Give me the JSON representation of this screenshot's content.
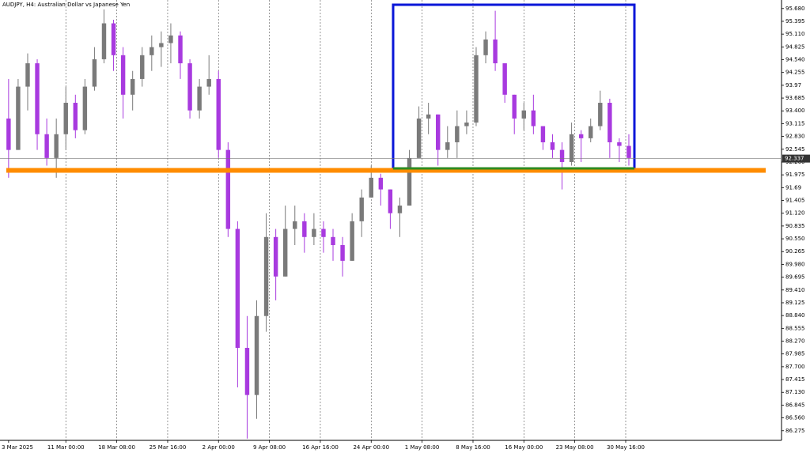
{
  "chart_data": {
    "type": "candlestick",
    "title": "AUDJPY, H4:  Australian Dollar vs Japanese Yen",
    "up_color": "#7a7a7a",
    "down_color": "#a83adf",
    "open": [
      93.23,
      92.53,
      93.94,
      94.46,
      92.88,
      92.35,
      92.88,
      93.58,
      92.97,
      93.94,
      94.55,
      95.35,
      94.64,
      93.76,
      94.11,
      94.64,
      94.82,
      94.91,
      95.08,
      94.46,
      93.41,
      93.94,
      94.11,
      92.53,
      90.77,
      88.12,
      87.07,
      88.83,
      90.59,
      89.71,
      90.77,
      90.94,
      90.59,
      90.77,
      90.59,
      90.41,
      90.06,
      90.94,
      91.47,
      91.91,
      91.65,
      91.12,
      91.29,
      92.35,
      93.23,
      93.32,
      92.53,
      92.7,
      93.06,
      93.14,
      94.64,
      94.99,
      94.46,
      93.76,
      93.23,
      93.41,
      93.06,
      92.7,
      92.53,
      92.26,
      92.88,
      92.79,
      93.06,
      93.58,
      92.7,
      92.62
    ],
    "high": [
      94.11,
      94.11,
      94.68,
      94.55,
      93.23,
      93.23,
      93.94,
      93.76,
      94.11,
      94.82,
      95.66,
      95.43,
      94.82,
      94.29,
      94.82,
      95.08,
      95.17,
      95.35,
      95.17,
      94.55,
      94.11,
      94.64,
      94.29,
      92.7,
      90.94,
      88.83,
      89.18,
      91.12,
      90.77,
      91.29,
      91.29,
      91.12,
      91.12,
      90.94,
      90.77,
      90.59,
      91.12,
      91.65,
      92.18,
      92.0,
      91.65,
      91.47,
      92.53,
      93.5,
      93.58,
      93.32,
      93.06,
      93.41,
      93.41,
      94.82,
      95.17,
      95.63,
      94.46,
      93.76,
      93.58,
      93.76,
      93.06,
      92.88,
      92.7,
      93.14,
      92.97,
      93.23,
      93.85,
      93.67,
      92.79,
      92.88
    ],
    "low": [
      91.91,
      92.53,
      93.41,
      92.53,
      92.18,
      91.91,
      92.53,
      92.79,
      92.88,
      93.85,
      94.46,
      94.29,
      93.23,
      93.41,
      93.94,
      94.29,
      94.38,
      94.46,
      94.11,
      93.23,
      93.23,
      93.76,
      92.35,
      90.59,
      87.24,
      86.1,
      86.54,
      88.48,
      89.18,
      89.71,
      90.41,
      90.24,
      90.41,
      90.24,
      90.06,
      89.71,
      90.06,
      90.59,
      91.47,
      91.29,
      90.77,
      90.59,
      91.29,
      92.35,
      92.88,
      92.18,
      92.35,
      92.35,
      92.88,
      93.06,
      94.46,
      94.29,
      93.58,
      92.88,
      92.97,
      92.88,
      92.53,
      92.35,
      91.65,
      92.18,
      92.26,
      92.7,
      92.97,
      92.35,
      92.26,
      92.18
    ],
    "close": [
      92.53,
      93.94,
      94.46,
      92.88,
      92.35,
      92.88,
      93.58,
      92.97,
      93.94,
      94.55,
      95.35,
      94.64,
      93.76,
      94.11,
      94.64,
      94.82,
      94.91,
      95.08,
      94.46,
      93.41,
      93.94,
      94.11,
      92.53,
      90.77,
      88.12,
      87.07,
      88.83,
      90.59,
      89.71,
      90.77,
      90.94,
      90.59,
      90.77,
      90.59,
      90.41,
      90.06,
      90.94,
      91.47,
      91.91,
      91.65,
      91.12,
      91.29,
      92.35,
      93.23,
      93.32,
      92.53,
      92.7,
      93.06,
      93.14,
      94.64,
      94.99,
      94.46,
      93.76,
      93.23,
      93.41,
      93.06,
      92.7,
      92.53,
      92.26,
      92.88,
      92.79,
      93.06,
      93.58,
      92.7,
      92.62,
      92.35
    ],
    "last_price": 92.337,
    "ylim": [
      86.06,
      95.87
    ],
    "yticks": [
      {
        "value": 95.68,
        "label": "95.680"
      },
      95.395,
      {
        "value": 95.11,
        "label": "95.110"
      },
      94.825,
      {
        "value": 94.54,
        "label": "94.540"
      },
      94.255,
      93.97,
      93.685,
      {
        "value": 93.4,
        "label": "93.400"
      },
      93.115,
      {
        "value": 92.83,
        "label": "92.830"
      },
      92.545,
      {
        "value": 92.26,
        "label": "92.260"
      },
      91.975,
      91.69,
      91.405,
      {
        "value": 91.12,
        "label": "91.120"
      },
      90.835,
      {
        "value": 90.55,
        "label": "90.550"
      },
      90.265,
      {
        "value": 89.98,
        "label": "89.980"
      },
      89.695,
      {
        "value": 89.41,
        "label": "89.410"
      },
      89.125,
      {
        "value": 88.84,
        "label": "88.840"
      },
      88.555,
      {
        "value": 88.27,
        "label": "88.270"
      },
      87.985,
      {
        "value": 87.7,
        "label": "87.700"
      },
      87.415,
      {
        "value": 87.13,
        "label": "87.130"
      },
      86.845,
      {
        "value": 86.56,
        "label": "86.560"
      },
      86.275
    ],
    "xlim": [
      -0.9,
      81.0
    ],
    "xticks": [
      {
        "value": 0,
        "label": "3 Mar 2025"
      },
      {
        "value": 6,
        "label": "11 Mar 00:00"
      },
      {
        "value": 11.33,
        "label": "18 Mar 08:00"
      },
      {
        "value": 16.67,
        "label": "25 Mar 16:00"
      },
      {
        "value": 22,
        "label": "2 Apr 00:00"
      },
      {
        "value": 27.33,
        "label": "9 Apr 08:00"
      },
      {
        "value": 32.67,
        "label": "16 Apr 16:00"
      },
      {
        "value": 38,
        "label": "24 Apr 00:00"
      },
      {
        "value": 43.33,
        "label": "1 May 08:00"
      },
      {
        "value": 48.67,
        "label": "8 May 16:00"
      },
      {
        "value": 54,
        "label": "16 May 00:00"
      },
      {
        "value": 59.33,
        "label": "23 May 08:00"
      },
      {
        "value": 64.67,
        "label": "30 May 16:00"
      }
    ],
    "grid": true
  }
}
